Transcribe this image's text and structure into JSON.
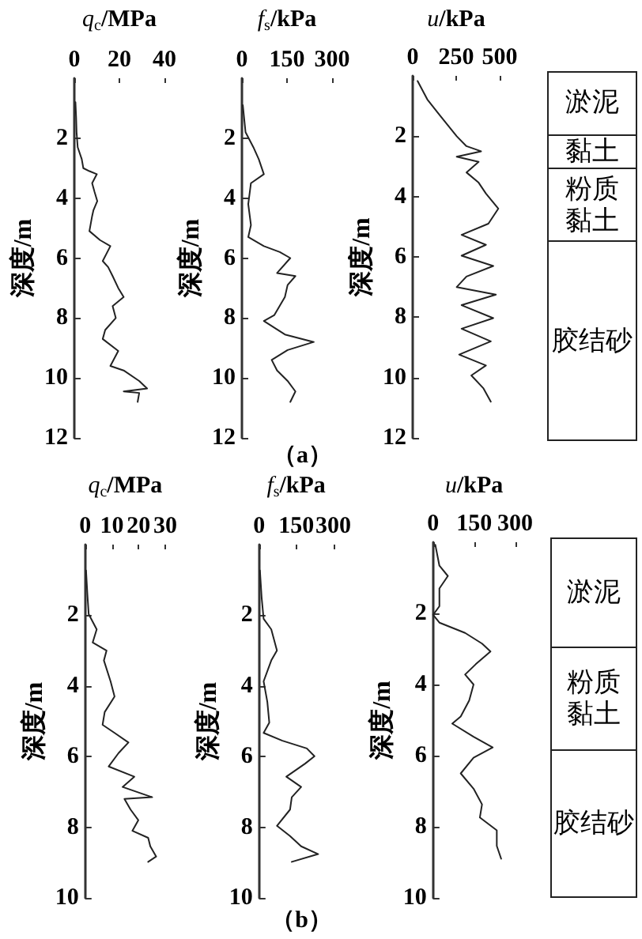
{
  "chart_data": [
    {
      "type": "line",
      "xlabel": "q$_{c}$/MPa",
      "ylabel": "深度/m",
      "xlim": [
        0,
        40
      ],
      "xticks": [
        0,
        20,
        40
      ],
      "ylim": [
        12,
        0
      ],
      "yticks": [
        2,
        4,
        6,
        8,
        10,
        12
      ],
      "marker": "none",
      "line_style": "solid",
      "series": [
        {
          "color": "#222222",
          "x": [
            0.5,
            0.8,
            1,
            1.5,
            3.3,
            4,
            6.7,
            10,
            7.9,
            9,
            10.2,
            8.5,
            7.9,
            6.7,
            11.4,
            16,
            12.6,
            15,
            17,
            19.5,
            21.9,
            17,
            18.4,
            13.7,
            12.6,
            19.5,
            16,
            21.9,
            28.8,
            32.3,
            21.9,
            28.8,
            28.1
          ],
          "values": [
            0.8,
            1.3,
            1.8,
            2.3,
            2.7,
            3.0,
            3.1,
            3.2,
            3.5,
            3.8,
            4.1,
            4.4,
            4.6,
            5.1,
            5.4,
            5.6,
            6.1,
            6.3,
            6.6,
            7.0,
            7.3,
            7.6,
            8.0,
            8.4,
            8.7,
            9.1,
            9.6,
            9.75,
            10.1,
            10.35,
            10.45,
            10.5,
            10.8
          ]
        }
      ]
    },
    {
      "type": "line",
      "xlabel": "f$_{s}$/kPa",
      "ylabel": "深度/m",
      "xlim": [
        0,
        300
      ],
      "xticks": [
        0,
        150,
        300
      ],
      "ylim": [
        12,
        0
      ],
      "yticks": [
        2,
        4,
        6,
        8,
        10,
        12
      ],
      "marker": "none",
      "line_style": "solid",
      "annotations": [
        "（a）"
      ],
      "series": [
        {
          "color": "#222222",
          "x": [
            3,
            8,
            12,
            38,
            56,
            73,
            30,
            21,
            30,
            21,
            73,
            126,
            161,
            117,
            178,
            152,
            143,
            108,
            73,
            143,
            239,
            152,
            99,
            117,
            152,
            178,
            161
          ],
          "values": [
            0.9,
            1.4,
            1.8,
            2.3,
            2.7,
            3.2,
            3.5,
            4.2,
            4.9,
            5.3,
            5.6,
            5.8,
            6.0,
            6.5,
            6.6,
            6.9,
            7.3,
            7.9,
            8.1,
            8.55,
            8.8,
            9.07,
            9.4,
            9.75,
            10.1,
            10.45,
            10.8
          ]
        }
      ]
    },
    {
      "type": "line",
      "xlabel": "u/kPa",
      "ylabel": "深度/m",
      "xlim": [
        0,
        500
      ],
      "xticks": [
        0,
        250,
        500
      ],
      "ylim": [
        12,
        0
      ],
      "yticks": [
        2,
        4,
        6,
        8,
        10,
        12
      ],
      "marker": "none",
      "line_style": "solid",
      "series": [
        {
          "color": "#222222",
          "x": [
            28,
            84,
            155,
            253,
            309,
            393,
            253,
            379,
            309,
            379,
            421,
            492,
            435,
            281,
            421,
            281,
            463,
            309,
            253,
            478,
            281,
            463,
            281,
            449,
            267,
            421,
            337,
            407,
            449
          ],
          "values": [
            0.17,
            0.78,
            1.3,
            2.0,
            2.33,
            2.5,
            2.68,
            2.85,
            3.2,
            3.54,
            3.9,
            4.4,
            4.9,
            5.27,
            5.6,
            5.96,
            6.3,
            6.65,
            7.0,
            7.25,
            7.6,
            8.03,
            8.38,
            8.8,
            9.24,
            9.6,
            9.93,
            10.36,
            10.8
          ]
        }
      ]
    },
    {
      "type": "other",
      "annotations": [
        "淤泥",
        "黏土",
        "粉质黏土",
        "胶结砂"
      ]
    },
    {
      "type": "line",
      "xlabel": "q$_{c}$/MPa",
      "ylabel": "深度/m",
      "xlim": [
        0,
        30
      ],
      "xticks": [
        0,
        10,
        20,
        30
      ],
      "ylim": [
        10,
        0
      ],
      "yticks": [
        2,
        4,
        6,
        8,
        10
      ],
      "marker": "none",
      "line_style": "solid",
      "series": [
        {
          "color": "#222222",
          "x": [
            0.3,
            0.8,
            1.3,
            4.3,
            2.8,
            8.0,
            7.0,
            9.5,
            11,
            7.3,
            6.5,
            11,
            16.2,
            12.5,
            8.8,
            18.4,
            14,
            25.1,
            14.7,
            17,
            19.9,
            17.7,
            23.6,
            24.4,
            26.6,
            23.6
          ],
          "values": [
            0.73,
            1.4,
            1.97,
            2.4,
            2.77,
            3.0,
            3.28,
            3.87,
            4.3,
            4.74,
            5.1,
            5.33,
            5.6,
            5.9,
            6.28,
            6.57,
            6.86,
            7.15,
            7.2,
            7.5,
            7.8,
            8.1,
            8.3,
            8.54,
            8.83,
            8.98
          ]
        }
      ]
    },
    {
      "type": "line",
      "xlabel": "f$_{s}$/kPa",
      "ylabel": "深度/m",
      "xlim": [
        0,
        300
      ],
      "xticks": [
        0,
        150,
        300
      ],
      "ylim": [
        10,
        0
      ],
      "yticks": [
        2,
        4,
        6,
        8,
        10
      ],
      "marker": "none",
      "line_style": "solid",
      "annotations": [
        "（b）"
      ],
      "series": [
        {
          "color": "#222222",
          "x": [
            3,
            10,
            18,
            49,
            72,
            49,
            18,
            33,
            41,
            18,
            94,
            193,
            224,
            186,
            110,
            170,
            132,
            125,
            72,
            125,
            170,
            239,
            132
          ],
          "values": [
            0.73,
            1.5,
            2.1,
            2.4,
            3.0,
            3.28,
            3.87,
            4.45,
            5.04,
            5.33,
            5.55,
            5.77,
            5.99,
            6.2,
            6.57,
            6.86,
            7.15,
            7.5,
            7.96,
            8.25,
            8.54,
            8.76,
            8.98
          ]
        }
      ]
    },
    {
      "type": "line",
      "xlabel": "u/kPa",
      "ylabel": "深度/m",
      "xlim": [
        0,
        300
      ],
      "xticks": [
        0,
        150,
        300
      ],
      "ylim": [
        10,
        0
      ],
      "yticks": [
        2,
        4,
        6,
        8,
        10
      ],
      "marker": "none",
      "line_style": "solid",
      "series": [
        {
          "color": "#222222",
          "x": [
            8,
            23,
            54,
            23,
            23,
            0,
            23,
            117,
            179,
            210,
            156,
            117,
            148,
            132,
            101,
            70,
            148,
            218,
            148,
            101,
            148,
            179,
            171,
            233,
            233,
            249
          ],
          "values": [
            0.07,
            0.66,
            0.95,
            1.3,
            1.8,
            2.04,
            2.26,
            2.55,
            2.85,
            3.07,
            3.43,
            3.72,
            4.0,
            4.45,
            4.9,
            5.1,
            5.47,
            5.77,
            6.06,
            6.5,
            6.93,
            7.37,
            7.74,
            8.1,
            8.54,
            8.9
          ]
        }
      ]
    },
    {
      "type": "other",
      "annotations": [
        "淤泥",
        "粉质黏土",
        "胶结砂"
      ]
    }
  ]
}
